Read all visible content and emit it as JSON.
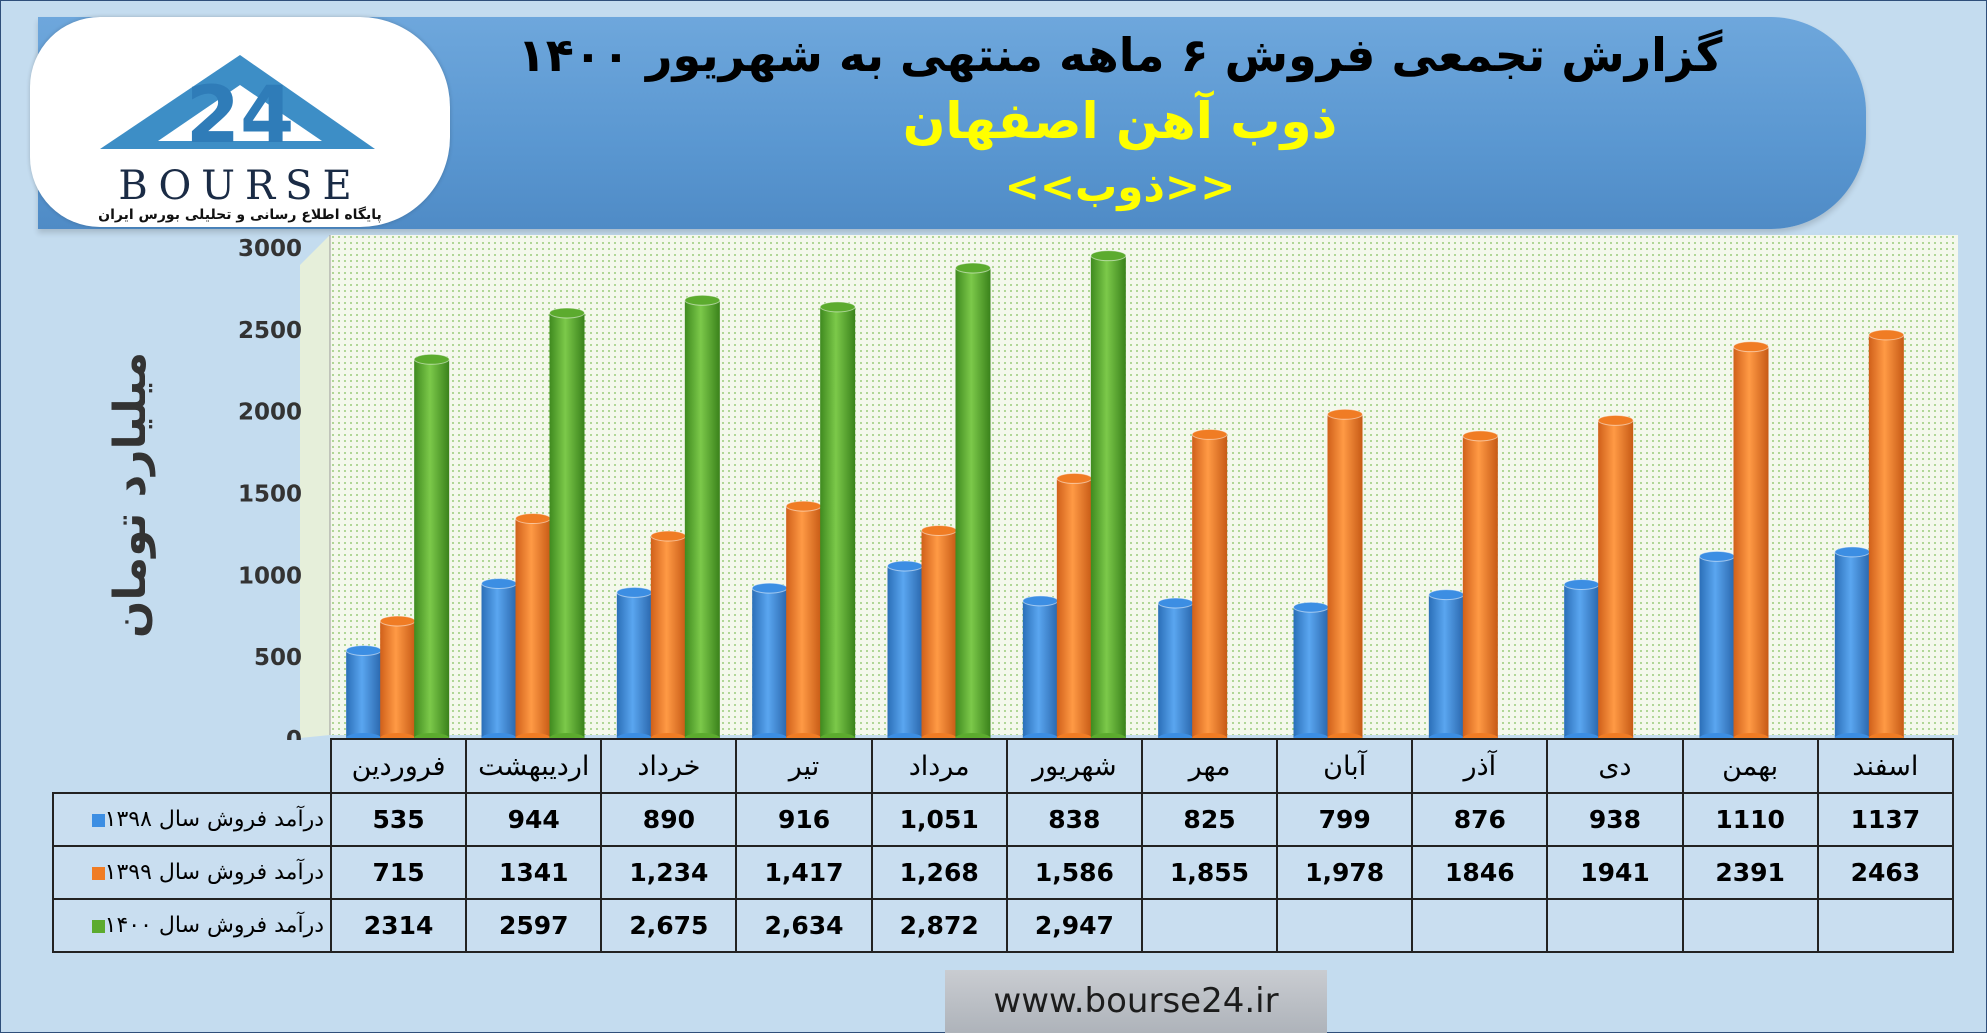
{
  "header": {
    "title": "گزارش تجمعی فروش ۶ ماهه منتهی به شهریور ۱۴۰۰",
    "company": "ذوب آهن اصفهان",
    "ticker": "<<ذوب>>"
  },
  "logo": {
    "brand": "24 BOURSE",
    "tagline": "پایگاه اطلاع رسانی و تحلیلی بورس ایران"
  },
  "footer": {
    "url": "www.bourse24.ir"
  },
  "colors": {
    "series_1398": "#3c8ee3",
    "series_1399": "#f07c24",
    "series_1400": "#5cab2e"
  },
  "chart_data": {
    "type": "bar",
    "ylabel": "میلیارد تومان",
    "ylim": [
      0,
      3000
    ],
    "yticks": [
      "0",
      "500",
      "1000",
      "1500",
      "2000",
      "2500",
      "3000"
    ],
    "categories": [
      "فروردین",
      "اردیبهشت",
      "خرداد",
      "تیر",
      "مرداد",
      "شهریور",
      "مهر",
      "آبان",
      "آذر",
      "دی",
      "بهمن",
      "اسفند"
    ],
    "series": [
      {
        "name": "درآمد فروش سال ۱۳۹۸",
        "values": [
          535,
          944,
          890,
          916,
          1051,
          838,
          825,
          799,
          876,
          938,
          1110,
          1137
        ],
        "labels": [
          "535",
          "944",
          "890",
          "916",
          "1,051",
          "838",
          "825",
          "799",
          "876",
          "938",
          "1110",
          "1137"
        ]
      },
      {
        "name": "درآمد فروش سال ۱۳۹۹",
        "values": [
          715,
          1341,
          1234,
          1417,
          1268,
          1586,
          1855,
          1978,
          1846,
          1941,
          2391,
          2463
        ],
        "labels": [
          "715",
          "1341",
          "1,234",
          "1,417",
          "1,268",
          "1,586",
          "1,855",
          "1,978",
          "1846",
          "1941",
          "2391",
          "2463"
        ]
      },
      {
        "name": "درآمد فروش سال ۱۴۰۰",
        "values": [
          2314,
          2597,
          2675,
          2634,
          2872,
          2947,
          null,
          null,
          null,
          null,
          null,
          null
        ],
        "labels": [
          "2314",
          "2597",
          "2,675",
          "2,634",
          "2,872",
          "2,947",
          "",
          "",
          "",
          "",
          "",
          ""
        ]
      }
    ]
  }
}
